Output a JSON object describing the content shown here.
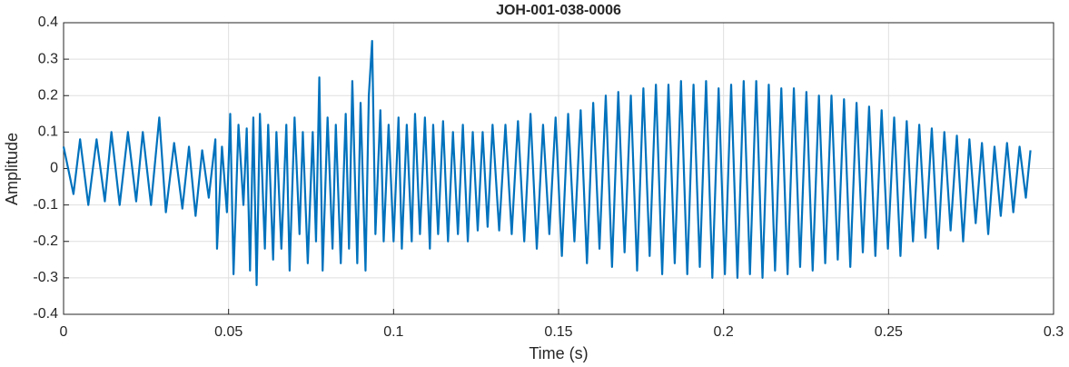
{
  "chart_data": {
    "type": "line",
    "title": "JOH-001-038-0006",
    "xlabel": "Time (s)",
    "ylabel": "Amplitude",
    "color": "#0072bd",
    "grid": true,
    "xlim": [
      0,
      0.3
    ],
    "xticks": [
      0,
      0.05,
      0.1,
      0.15,
      0.2,
      0.25,
      0.3
    ],
    "ylim": [
      -0.4,
      0.4
    ],
    "yticks": [
      -0.4,
      -0.3,
      -0.2,
      -0.1,
      0,
      0.1,
      0.2,
      0.3,
      0.4
    ],
    "x": [
      0,
      0.003,
      0.005,
      0.0075,
      0.01,
      0.0125,
      0.0145,
      0.017,
      0.0195,
      0.022,
      0.024,
      0.0265,
      0.029,
      0.031,
      0.0335,
      0.036,
      0.038,
      0.04,
      0.042,
      0.044,
      0.046,
      0.0465,
      0.048,
      0.0495,
      0.0505,
      0.0515,
      0.053,
      0.0545,
      0.0555,
      0.0565,
      0.0575,
      0.0585,
      0.0595,
      0.061,
      0.062,
      0.0635,
      0.0645,
      0.066,
      0.0675,
      0.0685,
      0.07,
      0.0715,
      0.0725,
      0.074,
      0.0755,
      0.0765,
      0.0775,
      0.0785,
      0.08,
      0.0815,
      0.0825,
      0.084,
      0.0855,
      0.0865,
      0.0875,
      0.089,
      0.09,
      0.0915,
      0.0925,
      0.0935,
      0.0945,
      0.096,
      0.097,
      0.0985,
      0.1,
      0.1015,
      0.1025,
      0.104,
      0.1055,
      0.1065,
      0.108,
      0.1095,
      0.111,
      0.112,
      0.1135,
      0.115,
      0.1165,
      0.118,
      0.1195,
      0.121,
      0.1225,
      0.124,
      0.1255,
      0.127,
      0.1285,
      0.13,
      0.132,
      0.1339,
      0.1358,
      0.1377,
      0.1396,
      0.1415,
      0.1434,
      0.1453,
      0.1472,
      0.1491,
      0.151,
      0.1529,
      0.1548,
      0.1567,
      0.1586,
      0.1605,
      0.1624,
      0.1643,
      0.1662,
      0.1681,
      0.17,
      0.1719,
      0.1738,
      0.1757,
      0.1776,
      0.1795,
      0.1814,
      0.1833,
      0.1852,
      0.1871,
      0.189,
      0.1909,
      0.1928,
      0.1947,
      0.1966,
      0.1985,
      0.2004,
      0.2023,
      0.2042,
      0.2061,
      0.208,
      0.2099,
      0.2118,
      0.2137,
      0.2156,
      0.2175,
      0.2194,
      0.2213,
      0.2232,
      0.2251,
      0.227,
      0.2289,
      0.2308,
      0.2327,
      0.2346,
      0.2365,
      0.2384,
      0.2403,
      0.2422,
      0.2441,
      0.246,
      0.2479,
      0.2498,
      0.2517,
      0.2536,
      0.2555,
      0.2574,
      0.2593,
      0.2612,
      0.2631,
      0.265,
      0.2669,
      0.2688,
      0.2707,
      0.2726,
      0.2745,
      0.2764,
      0.2783,
      0.2802,
      0.2821,
      0.284,
      0.2859,
      0.2878,
      0.2897,
      0.2916,
      0.293
    ],
    "values": [
      0.06,
      -0.07,
      0.08,
      -0.1,
      0.08,
      -0.09,
      0.1,
      -0.1,
      0.1,
      -0.09,
      0.1,
      -0.1,
      0.14,
      -0.12,
      0.07,
      -0.11,
      0.06,
      -0.13,
      0.05,
      -0.08,
      0.08,
      -0.22,
      0.06,
      -0.12,
      0.15,
      -0.29,
      0.12,
      -0.1,
      0.11,
      -0.28,
      0.14,
      -0.32,
      0.15,
      -0.22,
      0.12,
      -0.25,
      0.1,
      -0.22,
      0.12,
      -0.28,
      0.14,
      -0.18,
      0.1,
      -0.26,
      0.1,
      -0.2,
      0.25,
      -0.28,
      0.14,
      -0.22,
      0.12,
      -0.26,
      0.15,
      -0.22,
      0.24,
      -0.26,
      0.18,
      -0.28,
      0.2,
      0.35,
      -0.18,
      0.16,
      -0.2,
      0.12,
      -0.2,
      0.14,
      -0.22,
      0.12,
      -0.2,
      0.15,
      -0.18,
      0.14,
      -0.22,
      0.12,
      -0.18,
      0.13,
      -0.2,
      0.1,
      -0.18,
      0.12,
      -0.2,
      0.1,
      -0.17,
      0.1,
      -0.16,
      0.12,
      -0.17,
      0.12,
      -0.18,
      0.13,
      -0.2,
      0.15,
      -0.22,
      0.12,
      -0.18,
      0.14,
      -0.24,
      0.15,
      -0.2,
      0.16,
      -0.26,
      0.18,
      -0.22,
      0.2,
      -0.27,
      0.21,
      -0.23,
      0.2,
      -0.28,
      0.22,
      -0.24,
      0.23,
      -0.29,
      0.23,
      -0.26,
      0.24,
      -0.29,
      0.23,
      -0.27,
      0.24,
      -0.3,
      0.22,
      -0.29,
      0.23,
      -0.3,
      0.24,
      -0.29,
      0.24,
      -0.3,
      0.23,
      -0.28,
      0.22,
      -0.29,
      0.22,
      -0.27,
      0.21,
      -0.28,
      0.2,
      -0.26,
      0.2,
      -0.25,
      0.19,
      -0.27,
      0.18,
      -0.23,
      0.17,
      -0.24,
      0.16,
      -0.22,
      0.14,
      -0.24,
      0.13,
      -0.2,
      0.12,
      -0.19,
      0.11,
      -0.22,
      0.1,
      -0.17,
      0.09,
      -0.2,
      0.08,
      -0.15,
      0.07,
      -0.18,
      0.06,
      -0.13,
      0.07,
      -0.12,
      0.06,
      -0.08,
      0.05
    ]
  }
}
